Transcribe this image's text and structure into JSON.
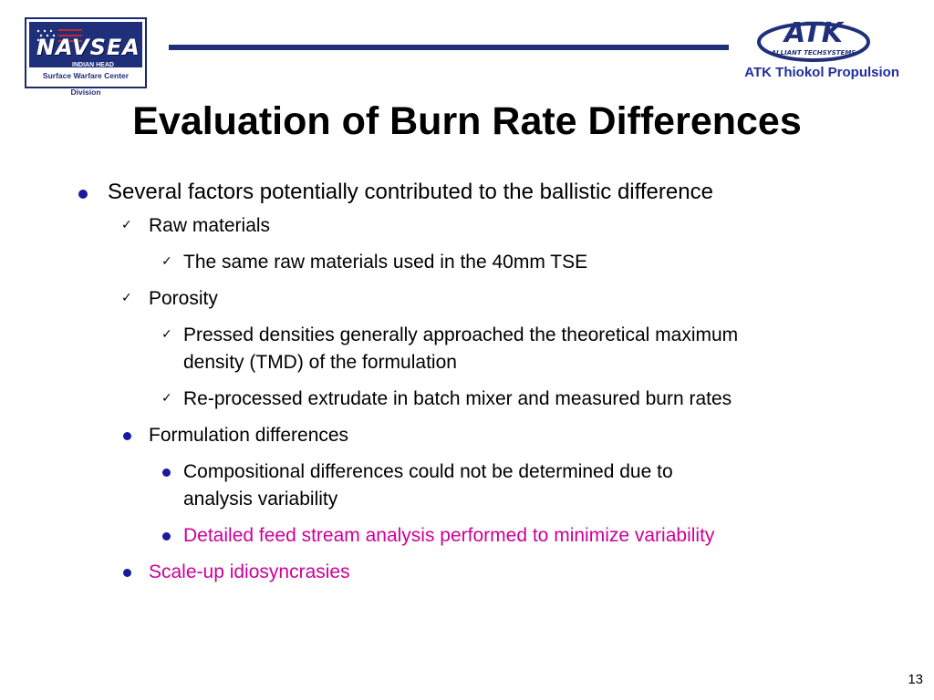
{
  "logos": {
    "navsea": {
      "name": "NAVSEA",
      "sub": "INDIAN HEAD",
      "division": "Surface Warfare Center Division"
    },
    "atk": {
      "name": "ATK",
      "tagline": "ALLIANT TECHSYSTEMS",
      "company": "ATK Thiokol Propulsion"
    }
  },
  "title": "Evaluation of Burn Rate Differences",
  "bullets": {
    "b1": "Several factors potentially contributed to the ballistic difference",
    "b1_1": "Raw materials",
    "b1_1_1": "The same raw materials used in the 40mm TSE",
    "b1_2": "Porosity",
    "b1_2_1_line1": "Pressed densities generally approached the theoretical maximum",
    "b1_2_1_line2": "density (TMD) of the formulation",
    "b1_2_2": "Re-processed extrudate in batch mixer and measured burn rates",
    "b1_3": "Formulation differences",
    "b1_3_1_line1": "Compositional differences could not be determined due to",
    "b1_3_1_line2": "analysis variability",
    "b1_3_2": "Detailed feed stream analysis performed to minimize variability",
    "b1_4": "Scale-up idiosyncrasies"
  },
  "colors": {
    "accent_blue": "#1f2f7a",
    "highlight_pink": "#cc0099"
  },
  "page_number": "13"
}
